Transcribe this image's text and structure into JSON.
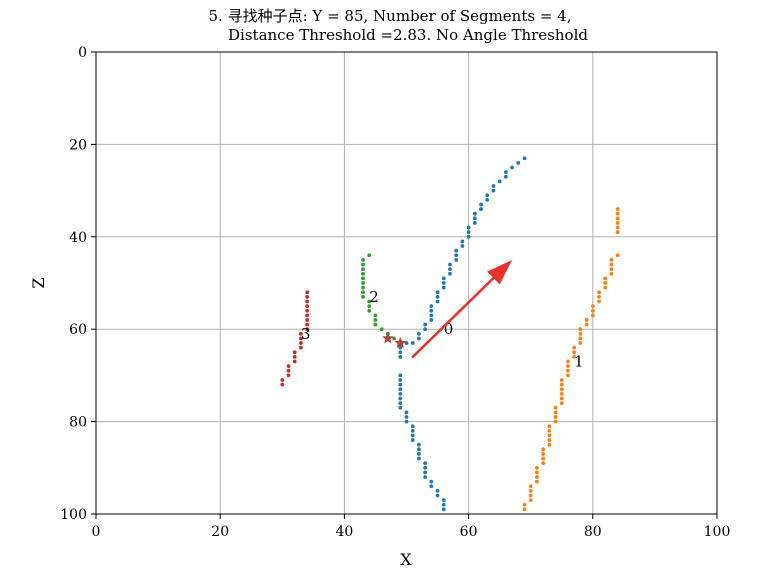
{
  "chart_data": {
    "type": "scatter",
    "title_line1": "5. 寻找种子点: Y = 85, Number of Segments = 4,",
    "title_line2": "Distance Threshold =2.83. No Angle Threshold",
    "xlabel": "X",
    "ylabel": "Z",
    "xlim": [
      0,
      100
    ],
    "ylim": [
      100,
      0
    ],
    "y_inverted": true,
    "grid": true,
    "xticks": [
      0,
      20,
      40,
      60,
      80,
      100
    ],
    "yticks": [
      0,
      20,
      40,
      60,
      80,
      100
    ],
    "colors": {
      "seg0": "#1f77b4",
      "seg1": "#ff7f0e",
      "seg2": "#2ca02c",
      "seg3": "#d62728",
      "arrow": "#e8312a",
      "grid": "#b0b0b0"
    },
    "series": [
      {
        "name": "0",
        "color_key": "seg0",
        "points": [
          [
            69,
            23
          ],
          [
            68,
            24
          ],
          [
            67,
            25
          ],
          [
            66,
            26
          ],
          [
            66,
            27
          ],
          [
            65,
            28
          ],
          [
            64,
            29
          ],
          [
            64,
            30
          ],
          [
            63,
            31
          ],
          [
            63,
            32
          ],
          [
            62,
            33
          ],
          [
            62,
            34
          ],
          [
            61,
            35
          ],
          [
            61,
            36
          ],
          [
            61,
            37
          ],
          [
            60,
            38
          ],
          [
            60,
            39
          ],
          [
            60,
            40
          ],
          [
            59,
            41
          ],
          [
            59,
            42
          ],
          [
            58,
            43
          ],
          [
            58,
            44
          ],
          [
            58,
            45
          ],
          [
            57,
            46
          ],
          [
            57,
            47
          ],
          [
            57,
            48
          ],
          [
            56,
            49
          ],
          [
            56,
            50
          ],
          [
            56,
            51
          ],
          [
            55,
            52
          ],
          [
            55,
            53
          ],
          [
            55,
            54
          ],
          [
            54,
            55
          ],
          [
            54,
            56
          ],
          [
            54,
            57
          ],
          [
            54,
            58
          ],
          [
            53,
            59
          ],
          [
            53,
            60
          ],
          [
            52,
            61
          ],
          [
            52,
            62
          ],
          [
            51,
            63
          ],
          [
            50,
            63
          ],
          [
            49,
            64
          ],
          [
            49,
            65
          ],
          [
            49,
            66
          ],
          [
            49,
            70
          ],
          [
            49,
            71
          ],
          [
            49,
            72
          ],
          [
            49,
            73
          ],
          [
            49,
            74
          ],
          [
            49,
            75
          ],
          [
            49,
            76
          ],
          [
            49,
            77
          ],
          [
            50,
            78
          ],
          [
            50,
            79
          ],
          [
            50,
            80
          ],
          [
            51,
            81
          ],
          [
            51,
            82
          ],
          [
            51,
            83
          ],
          [
            51,
            84
          ],
          [
            52,
            85
          ],
          [
            52,
            86
          ],
          [
            52,
            87
          ],
          [
            52,
            88
          ],
          [
            53,
            89
          ],
          [
            53,
            90
          ],
          [
            53,
            91
          ],
          [
            53,
            92
          ],
          [
            54,
            93
          ],
          [
            54,
            94
          ],
          [
            55,
            95
          ],
          [
            55,
            96
          ],
          [
            56,
            97
          ],
          [
            56,
            98
          ],
          [
            56,
            99
          ]
        ]
      },
      {
        "name": "1",
        "color_key": "seg1",
        "points": [
          [
            84,
            34
          ],
          [
            84,
            35
          ],
          [
            84,
            36
          ],
          [
            84,
            37
          ],
          [
            84,
            38
          ],
          [
            84,
            39
          ],
          [
            84,
            44
          ],
          [
            83,
            45
          ],
          [
            83,
            46
          ],
          [
            83,
            47
          ],
          [
            83,
            48
          ],
          [
            82,
            49
          ],
          [
            82,
            50
          ],
          [
            82,
            51
          ],
          [
            81,
            52
          ],
          [
            81,
            53
          ],
          [
            81,
            54
          ],
          [
            80,
            55
          ],
          [
            80,
            56
          ],
          [
            80,
            57
          ],
          [
            79,
            58
          ],
          [
            79,
            59
          ],
          [
            78,
            60
          ],
          [
            78,
            61
          ],
          [
            78,
            62
          ],
          [
            78,
            63
          ],
          [
            77,
            64
          ],
          [
            77,
            65
          ],
          [
            77,
            66
          ],
          [
            76,
            67
          ],
          [
            76,
            68
          ],
          [
            76,
            69
          ],
          [
            76,
            70
          ],
          [
            75,
            71
          ],
          [
            75,
            72
          ],
          [
            75,
            73
          ],
          [
            75,
            74
          ],
          [
            75,
            75
          ],
          [
            75,
            76
          ],
          [
            74,
            77
          ],
          [
            74,
            78
          ],
          [
            74,
            79
          ],
          [
            74,
            80
          ],
          [
            73,
            81
          ],
          [
            73,
            82
          ],
          [
            73,
            83
          ],
          [
            73,
            84
          ],
          [
            73,
            85
          ],
          [
            72,
            86
          ],
          [
            72,
            87
          ],
          [
            72,
            88
          ],
          [
            72,
            89
          ],
          [
            71,
            90
          ],
          [
            71,
            91
          ],
          [
            71,
            92
          ],
          [
            71,
            93
          ],
          [
            70,
            94
          ],
          [
            70,
            95
          ],
          [
            70,
            96
          ],
          [
            70,
            97
          ],
          [
            69,
            98
          ],
          [
            69,
            99
          ]
        ]
      },
      {
        "name": "2",
        "color_key": "seg2",
        "points": [
          [
            44,
            44
          ],
          [
            43,
            45
          ],
          [
            43,
            46
          ],
          [
            43,
            47
          ],
          [
            43,
            48
          ],
          [
            43,
            49
          ],
          [
            43,
            50
          ],
          [
            43,
            51
          ],
          [
            43,
            52
          ],
          [
            43,
            53
          ],
          [
            44,
            54
          ],
          [
            44,
            55
          ],
          [
            44,
            56
          ],
          [
            45,
            57
          ],
          [
            45,
            58
          ],
          [
            45,
            59
          ],
          [
            46,
            60
          ],
          [
            47,
            61
          ],
          [
            48,
            62
          ]
        ]
      },
      {
        "name": "3",
        "color_key": "seg3",
        "points": [
          [
            34,
            52
          ],
          [
            34,
            53
          ],
          [
            34,
            54
          ],
          [
            34,
            55
          ],
          [
            34,
            56
          ],
          [
            34,
            57
          ],
          [
            34,
            58
          ],
          [
            34,
            59
          ],
          [
            34,
            60
          ],
          [
            33,
            61
          ],
          [
            33,
            62
          ],
          [
            33,
            63
          ],
          [
            33,
            64
          ],
          [
            32,
            65
          ],
          [
            32,
            66
          ],
          [
            32,
            67
          ],
          [
            31,
            68
          ],
          [
            31,
            69
          ],
          [
            31,
            70
          ],
          [
            30,
            71
          ],
          [
            30,
            72
          ]
        ]
      }
    ],
    "segment_labels": [
      {
        "text": "0",
        "x": 56,
        "y": 60
      },
      {
        "text": "1",
        "x": 77,
        "y": 67
      },
      {
        "text": "2",
        "x": 44,
        "y": 53
      },
      {
        "text": "3",
        "x": 33,
        "y": 61
      }
    ],
    "seed_points": [
      {
        "x": 47,
        "y": 62
      },
      {
        "x": 49,
        "y": 63
      }
    ],
    "arrow": {
      "from": [
        51,
        66
      ],
      "to": [
        67,
        45
      ]
    }
  }
}
